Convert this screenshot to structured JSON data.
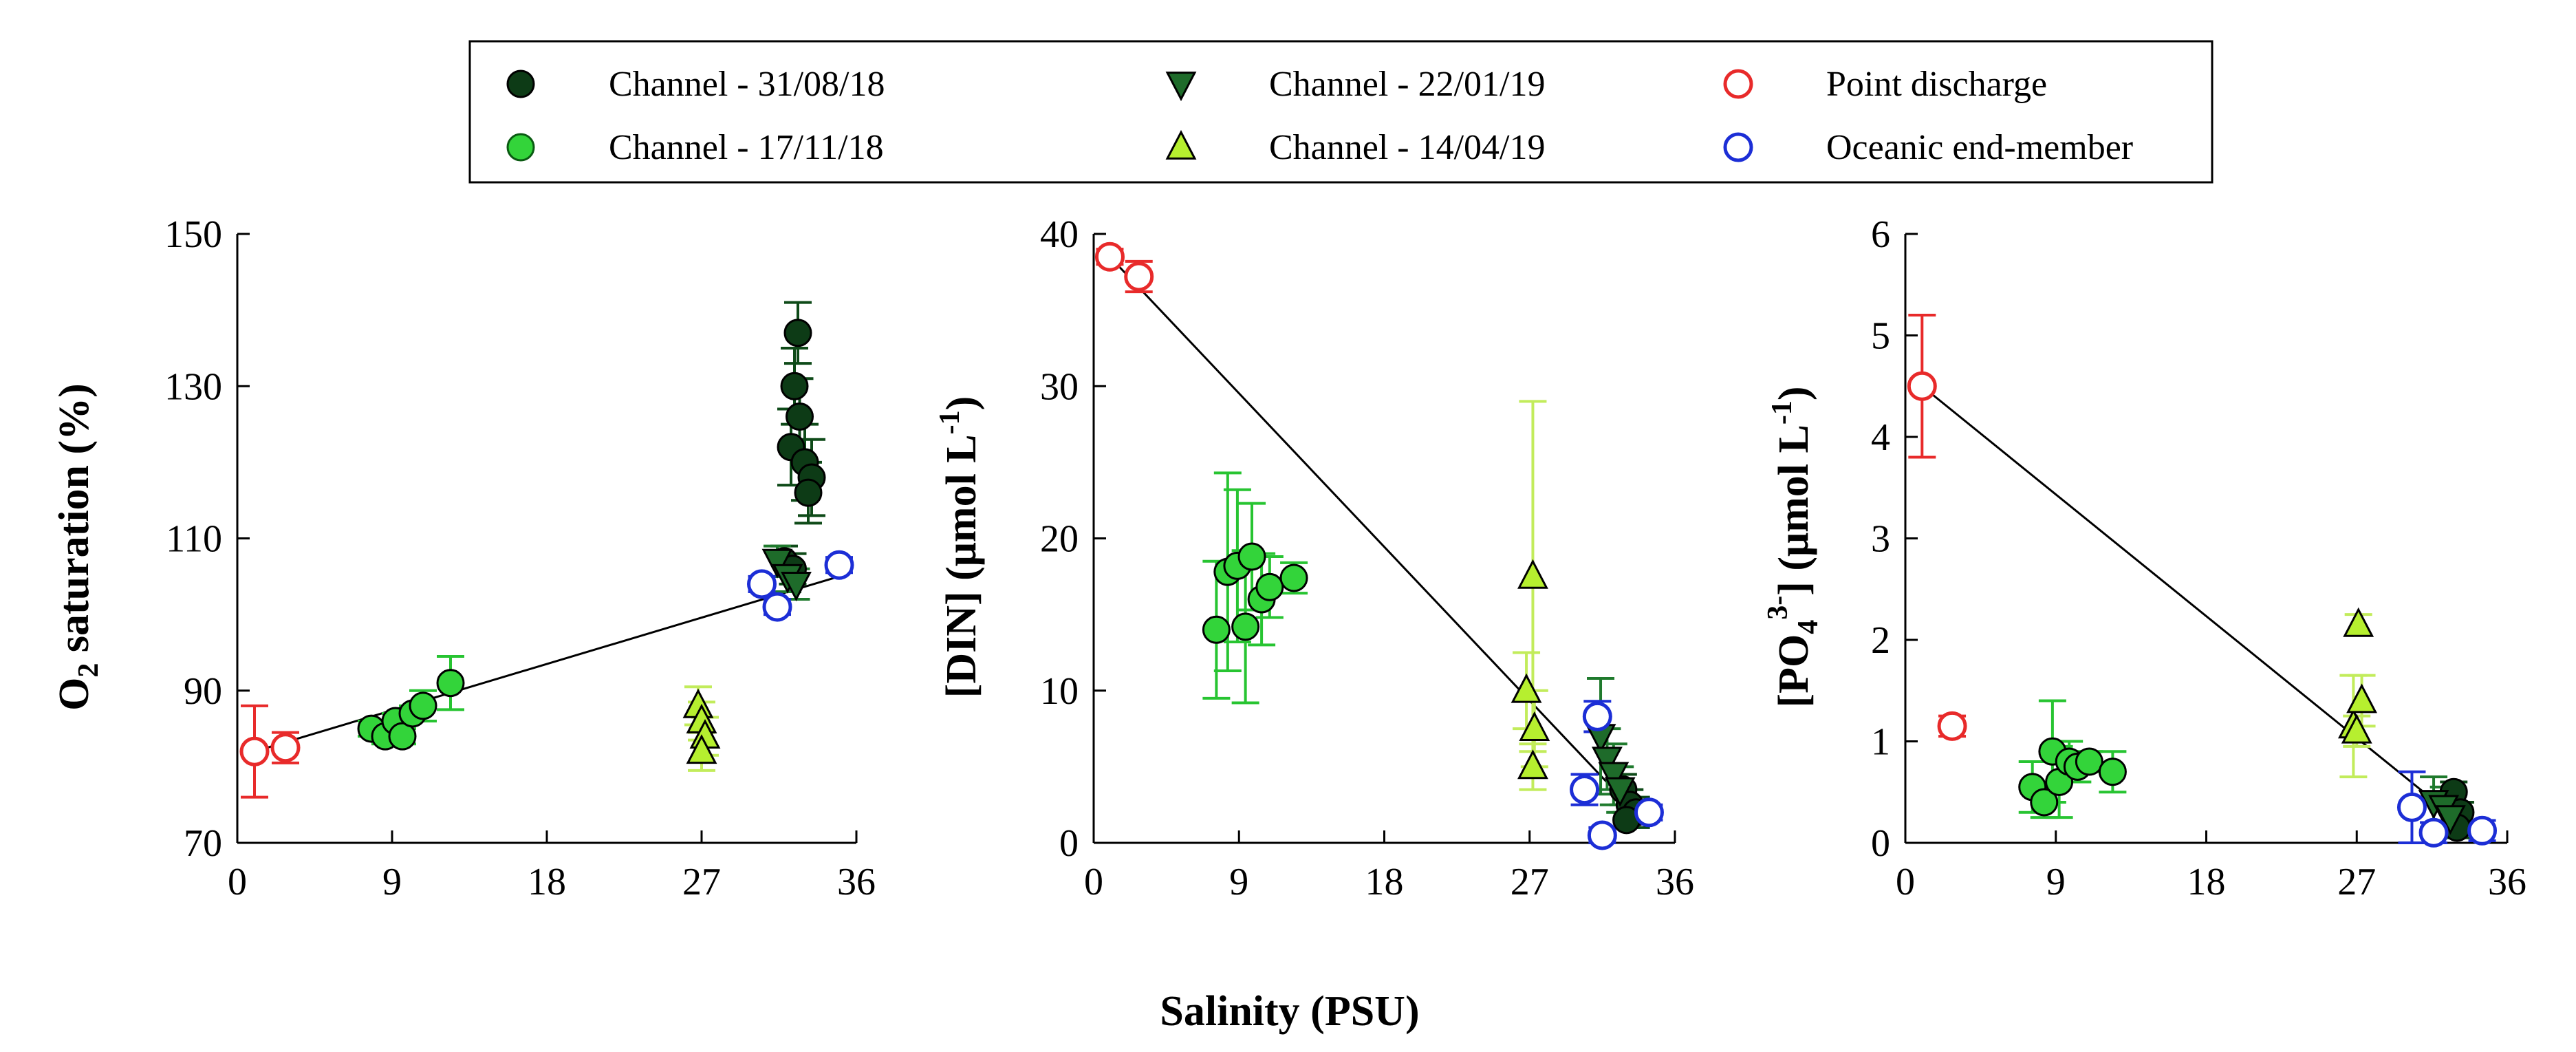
{
  "figure": {
    "shared_xlabel": "Salinity (PSU)",
    "legend": [
      {
        "label": "Channel - 31/08/18",
        "marker": "circle",
        "fill": "#0d3b16",
        "stroke": "#000000"
      },
      {
        "label": "Channel - 17/11/18",
        "marker": "circle",
        "fill": "#33d43a",
        "stroke": "#0a5a12"
      },
      {
        "label": "Channel - 22/01/19",
        "marker": "triangle-down",
        "fill": "#1e6b2a",
        "stroke": "#000000"
      },
      {
        "label": "Channel - 14/04/19",
        "marker": "triangle-up",
        "fill": "#b6ef2f",
        "stroke": "#000000"
      },
      {
        "label": "Point discharge",
        "marker": "open-circle",
        "fill": "none",
        "stroke": "#e82a2a"
      },
      {
        "label": "Oceanic end-member",
        "marker": "open-circle",
        "fill": "none",
        "stroke": "#1c2ed6"
      }
    ],
    "colors": {
      "c1": "#0d3b16",
      "c1_err": "#0e4a18",
      "c2": "#33d43a",
      "c2_err": "#27c431",
      "c3": "#1e6b2a",
      "c3_err": "#1f7a2d",
      "c4": "#b6ef2f",
      "c4_err": "#c2ec5b",
      "point": "#e82a2a",
      "ocean": "#1c2ed6"
    }
  },
  "chart_data": [
    {
      "type": "scatter",
      "id": "o2",
      "title": "",
      "ylabel_main": "O",
      "ylabel_sub": "2",
      "ylabel_rest": " saturation (%)",
      "xlabel": "Salinity (PSU)",
      "xlim": [
        0,
        36
      ],
      "ylim": [
        70,
        150
      ],
      "xticks": [
        0,
        9,
        18,
        27,
        36
      ],
      "yticks": [
        70,
        90,
        110,
        130,
        150
      ],
      "grid": false,
      "mixing_line": [
        [
          1,
          82
        ],
        [
          35,
          105
        ]
      ],
      "series": [
        {
          "name": "Channel - 31/08/18",
          "marker": "circle",
          "color": "c1",
          "points": [
            [
              32.6,
              137,
              4
            ],
            [
              32.4,
              130,
              5
            ],
            [
              32.7,
              126,
              5
            ],
            [
              32.2,
              122,
              5
            ],
            [
              33.0,
              120,
              5
            ],
            [
              33.4,
              118,
              5
            ],
            [
              33.2,
              116,
              4
            ],
            [
              31.8,
              107,
              2
            ],
            [
              32.3,
              106,
              2
            ]
          ]
        },
        {
          "name": "Channel - 17/11/18",
          "marker": "circle",
          "color": "c2",
          "points": [
            [
              7.8,
              85,
              1
            ],
            [
              8.6,
              84,
              1
            ],
            [
              9.2,
              86,
              1
            ],
            [
              9.6,
              84,
              1
            ],
            [
              10.2,
              87,
              1
            ],
            [
              10.8,
              88,
              2
            ],
            [
              12.4,
              91,
              3.5
            ]
          ]
        },
        {
          "name": "Channel - 22/01/19",
          "marker": "triangle-down",
          "color": "c3",
          "points": [
            [
              31.4,
              107,
              2
            ],
            [
              32.0,
              105,
              2
            ],
            [
              32.5,
              104,
              2
            ]
          ]
        },
        {
          "name": "Channel - 14/04/19",
          "marker": "triangle-up",
          "color": "c4",
          "points": [
            [
              26.8,
              88,
              2.5
            ],
            [
              27.0,
              86,
              2.5
            ],
            [
              27.2,
              84,
              2.5
            ],
            [
              27.0,
              82,
              2.5
            ]
          ]
        },
        {
          "name": "Point discharge",
          "marker": "open-circle",
          "color": "point",
          "points": [
            [
              1.0,
              82,
              6
            ],
            [
              2.8,
              82.5,
              2
            ]
          ]
        },
        {
          "name": "Oceanic end-member",
          "marker": "open-circle",
          "color": "ocean",
          "points": [
            [
              30.5,
              104,
              1
            ],
            [
              31.4,
              101,
              1
            ],
            [
              35.0,
              106.5,
              1
            ]
          ]
        }
      ]
    },
    {
      "type": "scatter",
      "id": "din",
      "title": "",
      "ylabel_main": "[DIN] (μmol L",
      "ylabel_sup": "-1",
      "ylabel_rest": ")",
      "xlabel": "Salinity (PSU)",
      "xlim": [
        0,
        36
      ],
      "ylim": [
        0,
        40
      ],
      "xticks": [
        0,
        9,
        18,
        27,
        36
      ],
      "yticks": [
        0,
        10,
        20,
        30,
        40
      ],
      "grid": false,
      "mixing_line": [
        [
          1,
          38.5
        ],
        [
          34,
          1.5
        ]
      ],
      "series": [
        {
          "name": "Channel - 31/08/18",
          "marker": "circle",
          "color": "c1",
          "points": [
            [
              32.8,
              3.5,
              1
            ],
            [
              33.2,
              2.5,
              1
            ],
            [
              33.6,
              2,
              1
            ],
            [
              33.0,
              1.5,
              0.5
            ]
          ]
        },
        {
          "name": "Channel - 17/11/18",
          "marker": "circle",
          "color": "c2",
          "points": [
            [
              7.6,
              14,
              4.5
            ],
            [
              8.3,
              17.8,
              6.5
            ],
            [
              8.9,
              18.2,
              5
            ],
            [
              9.4,
              14.2,
              5
            ],
            [
              9.8,
              18.8,
              3.5
            ],
            [
              10.4,
              16,
              3
            ],
            [
              10.9,
              16.8,
              2
            ],
            [
              12.4,
              17.4,
              1
            ]
          ]
        },
        {
          "name": "Channel - 22/01/19",
          "marker": "triangle-down",
          "color": "c3",
          "points": [
            [
              31.4,
              7,
              3.8
            ],
            [
              31.8,
              5.5,
              2
            ],
            [
              32.2,
              4.5,
              2
            ],
            [
              32.6,
              3.5,
              1.5
            ]
          ]
        },
        {
          "name": "Channel - 14/04/19",
          "marker": "triangle-up",
          "color": "c4",
          "points": [
            [
              26.8,
              10,
              2.5
            ],
            [
              27.2,
              17.5,
              11.5
            ],
            [
              27.3,
              7.5,
              2.5
            ],
            [
              27.2,
              5,
              1.5
            ]
          ]
        },
        {
          "name": "Point discharge",
          "marker": "open-circle",
          "color": "point",
          "points": [
            [
              1.0,
              38.5,
              0.5
            ],
            [
              2.8,
              37.2,
              1
            ]
          ]
        },
        {
          "name": "Oceanic end-member",
          "marker": "open-circle",
          "color": "ocean",
          "points": [
            [
              30.4,
              3.5,
              1
            ],
            [
              31.2,
              8.3,
              1
            ],
            [
              31.5,
              0.5,
              0.5
            ],
            [
              34.4,
              2,
              0.5
            ]
          ]
        }
      ]
    },
    {
      "type": "scatter",
      "id": "po4",
      "title": "",
      "ylabel_main": "[PO",
      "ylabel_sub": "4",
      "ylabel_sup": "3-",
      "ylabel_rest": "] (μmol L",
      "ylabel_sup2": "-1",
      "ylabel_end": ")",
      "xlabel": "Salinity (PSU)",
      "xlim": [
        0,
        36
      ],
      "ylim": [
        0,
        6
      ],
      "xticks": [
        0,
        9,
        18,
        27,
        36
      ],
      "yticks": [
        0,
        1,
        2,
        3,
        4,
        5,
        6
      ],
      "grid": false,
      "mixing_line": [
        [
          1,
          4.5
        ],
        [
          34,
          0.1
        ]
      ],
      "series": [
        {
          "name": "Channel - 31/08/18",
          "marker": "circle",
          "color": "c1",
          "points": [
            [
              32.8,
              0.5,
              0.1
            ],
            [
              33.2,
              0.3,
              0.1
            ],
            [
              33.0,
              0.15,
              0.1
            ]
          ]
        },
        {
          "name": "Channel - 17/11/18",
          "marker": "circle",
          "color": "c2",
          "points": [
            [
              7.6,
              0.55,
              0.25
            ],
            [
              8.3,
              0.4,
              0.15
            ],
            [
              8.8,
              0.9,
              0.5
            ],
            [
              9.2,
              0.6,
              0.35
            ],
            [
              9.8,
              0.8,
              0.2
            ],
            [
              10.3,
              0.75,
              0.15
            ],
            [
              11.0,
              0.8,
              0.1
            ],
            [
              12.4,
              0.7,
              0.2
            ]
          ]
        },
        {
          "name": "Channel - 22/01/19",
          "marker": "triangle-down",
          "color": "c3",
          "points": [
            [
              31.6,
              0.4,
              0.25
            ],
            [
              32.2,
              0.35,
              0.2
            ],
            [
              32.6,
              0.25,
              0.2
            ]
          ]
        },
        {
          "name": "Channel - 14/04/19",
          "marker": "triangle-up",
          "color": "c4",
          "points": [
            [
              26.8,
              1.15,
              0.5
            ],
            [
              27.1,
              2.15,
              0.1
            ],
            [
              27.3,
              1.4,
              0.25
            ],
            [
              27.0,
              1.1,
              0.15
            ]
          ]
        },
        {
          "name": "Point discharge",
          "marker": "open-circle",
          "color": "point",
          "points": [
            [
              1.0,
              4.5,
              0.7
            ],
            [
              2.8,
              1.15,
              0.1
            ]
          ]
        },
        {
          "name": "Oceanic end-member",
          "marker": "open-circle",
          "color": "ocean",
          "points": [
            [
              30.3,
              0.35,
              0.35
            ],
            [
              31.6,
              0.1,
              0.1
            ],
            [
              34.5,
              0.12,
              0.1
            ]
          ]
        }
      ]
    }
  ]
}
